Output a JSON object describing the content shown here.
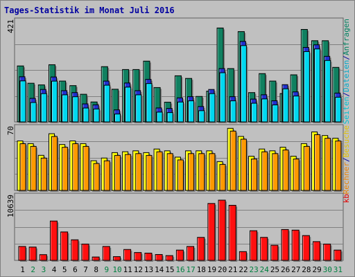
{
  "title": "Tages-Statistik im Monat Juli 2016",
  "chart_data": {
    "type": "bar",
    "title": "Tages-Statistik im Monat Juli 2016",
    "categories": [
      "1",
      "2",
      "3",
      "4",
      "5",
      "6",
      "7",
      "8",
      "9",
      "10",
      "11",
      "12",
      "13",
      "14",
      "15",
      "16",
      "17",
      "18",
      "19",
      "20",
      "21",
      "22",
      "23",
      "24",
      "25",
      "26",
      "27",
      "28",
      "29",
      "30",
      "31"
    ],
    "weekend_categories": [
      "2",
      "3",
      "9",
      "10",
      "16",
      "17",
      "23",
      "24",
      "30",
      "31"
    ],
    "panels": [
      {
        "name": "top",
        "ymax_label": "421",
        "ymax": 421,
        "right_labels": [
          {
            "text": "Seiten",
            "color": "#00c0d0"
          },
          {
            "text": "/",
            "color": "#0000a0"
          },
          {
            "text": "Dateien",
            "color": "#00a8c8"
          },
          {
            "text": "/",
            "color": "#0000a0"
          },
          {
            "text": "Anfragen",
            "color": "#008060"
          }
        ],
        "series": [
          {
            "name": "Anfragen",
            "color": "#108060",
            "values": [
              233,
              161,
              154,
              238,
              170,
              151,
              115,
              83,
              230,
              136,
              218,
              218,
              253,
              143,
              82,
              192,
              181,
              106,
              128,
              391,
              222,
              376,
              122,
              201,
              170,
              118,
              196,
              385,
              338,
              338,
              227
            ]
          },
          {
            "name": "Dateien",
            "color": "#2030d0",
            "values": [
              188,
              98,
              135,
              187,
              130,
              122,
              75,
              71,
              170,
              50,
              162,
              130,
              177,
              58,
              56,
              100,
              105,
              64,
              135,
              222,
              105,
              335,
              95,
              113,
              88,
              155,
              125,
              310,
              321,
              273,
              120
            ]
          },
          {
            "name": "Seiten",
            "color": "#00d8f0",
            "values": [
              188,
              98,
              135,
              187,
              130,
              122,
              75,
              71,
              170,
              50,
              162,
              130,
              177,
              58,
              56,
              100,
              105,
              64,
              135,
              222,
              105,
              335,
              95,
              113,
              88,
              155,
              125,
              310,
              321,
              273,
              120
            ]
          }
        ]
      },
      {
        "name": "middle",
        "ymax_label": "70",
        "ymax": 70,
        "right_labels": [
          {
            "text": "Rechner",
            "color": "#e88000"
          },
          {
            "text": "/",
            "color": "#0000a0"
          },
          {
            "text": "Besuche",
            "color": "#e0c000"
          }
        ],
        "series": [
          {
            "name": "Besuche",
            "color": "#ffff00",
            "values": [
              55,
              52,
              39,
              63,
              51,
              55,
              52,
              33,
              36,
              42,
              43,
              44,
              42,
              46,
              44,
              37,
              44,
              44,
              44,
              32,
              69,
              60,
              38,
              46,
              44,
              48,
              38,
              52,
              65,
              61,
              58
            ]
          },
          {
            "name": "Rechner",
            "color": "#ff9900",
            "values": [
              55,
              52,
              39,
              63,
              51,
              55,
              52,
              33,
              36,
              42,
              43,
              44,
              42,
              46,
              44,
              37,
              44,
              44,
              44,
              32,
              69,
              60,
              38,
              46,
              44,
              48,
              38,
              52,
              65,
              61,
              58
            ]
          }
        ]
      },
      {
        "name": "bottom",
        "ymax_label": "10639",
        "ymax": 10639,
        "right_labels": [
          {
            "text": "kb",
            "color": "#e00000"
          }
        ],
        "series": [
          {
            "name": "kb",
            "color": "#ff1010",
            "values": [
              2300,
              2200,
              950,
              6500,
              4700,
              3400,
              2700,
              560,
              2300,
              620,
              1800,
              1300,
              1200,
              970,
              790,
              1700,
              2300,
              3800,
              9400,
              9950,
              9100,
              1450,
              4900,
              3800,
              2500,
              5100,
              5000,
              4100,
              3100,
              2700,
              1700
            ]
          }
        ]
      }
    ],
    "grid": true
  }
}
